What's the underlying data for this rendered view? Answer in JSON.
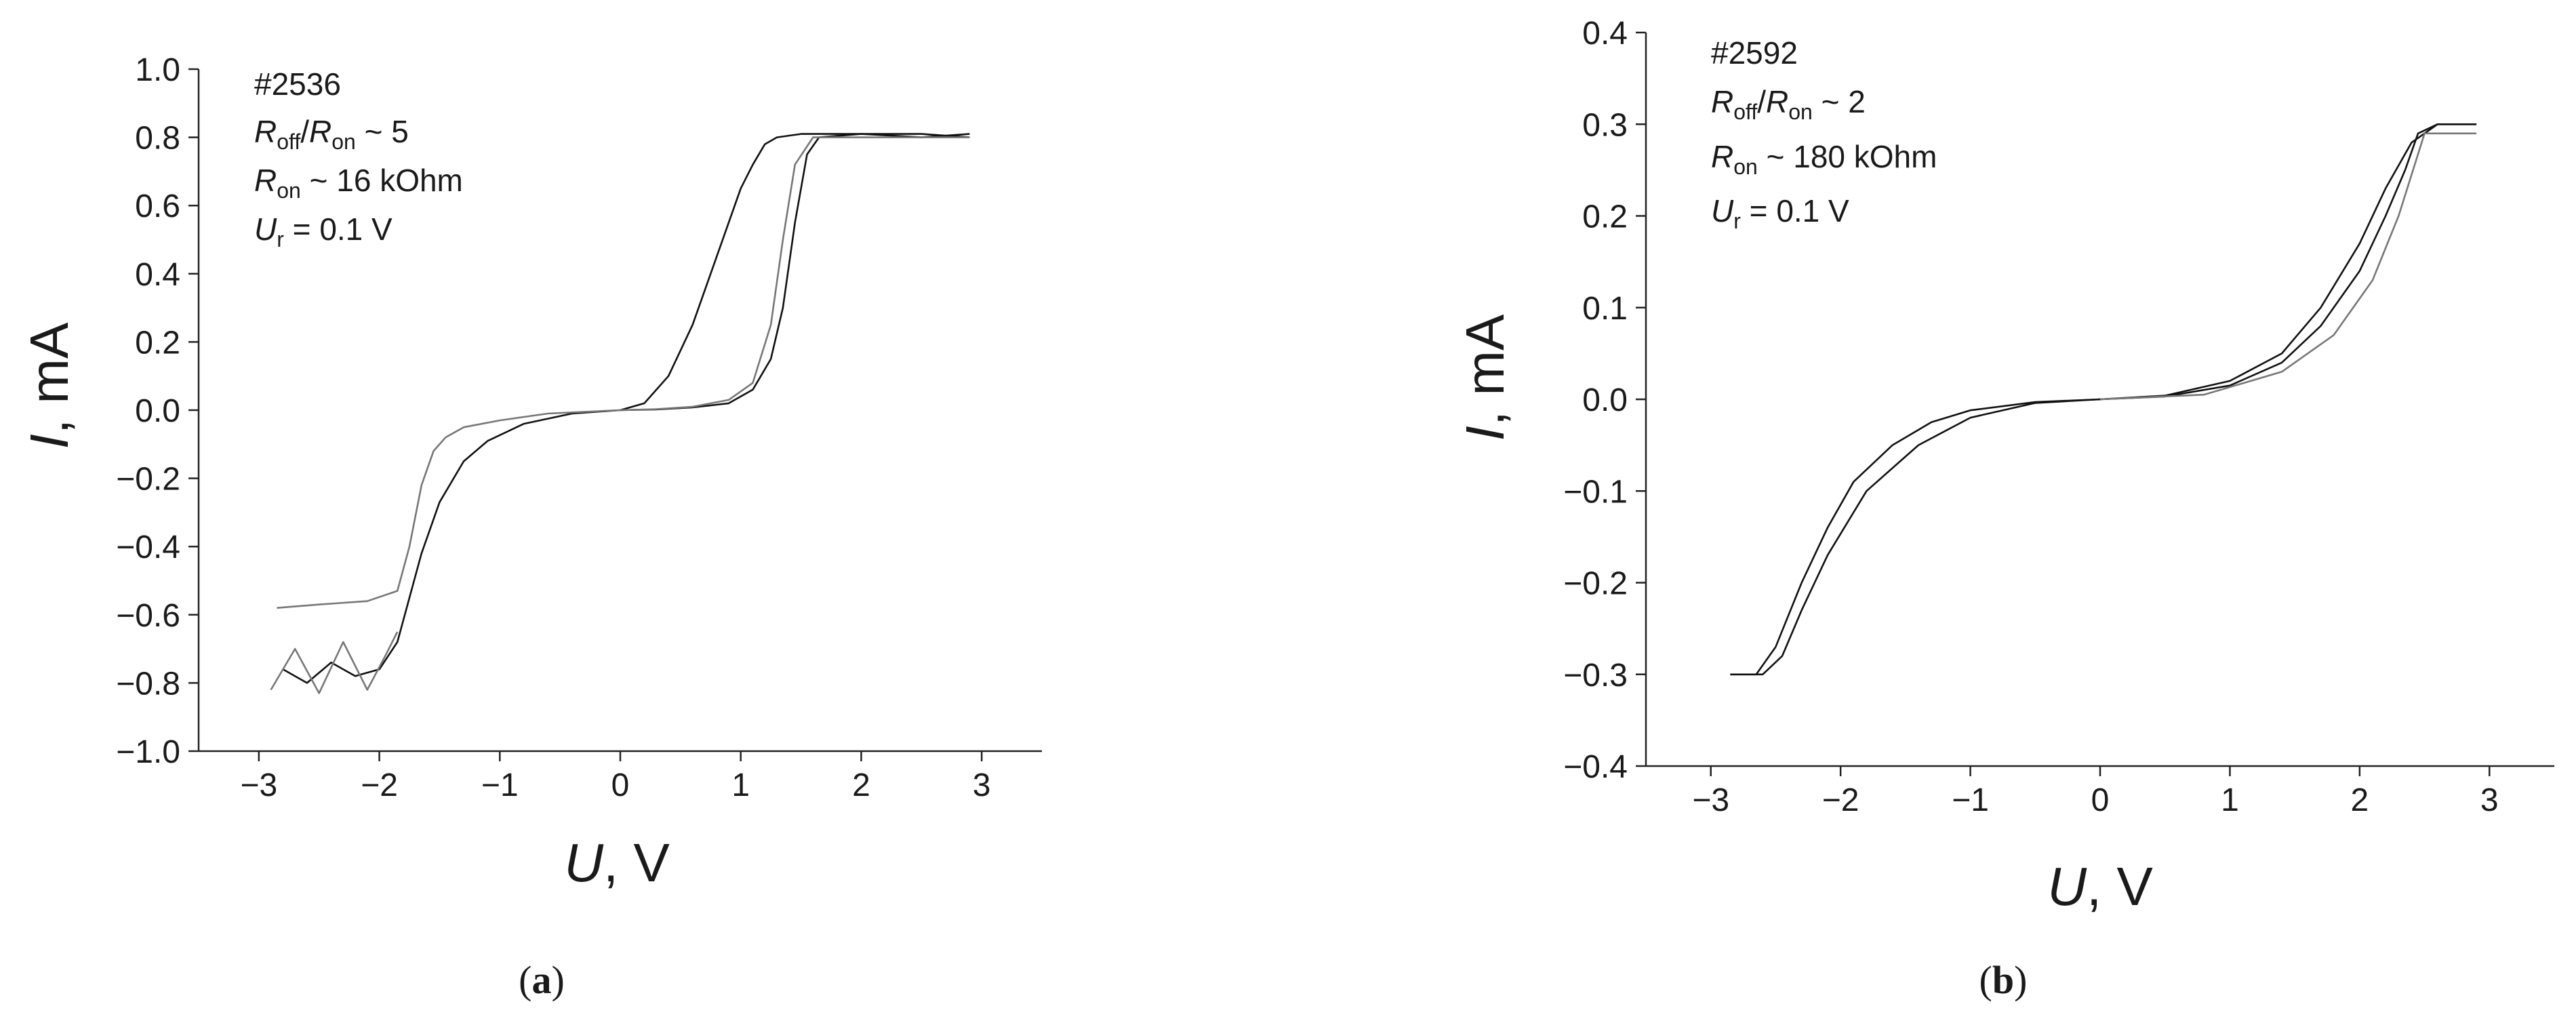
{
  "chart_data": [
    {
      "type": "line",
      "panel_label": [
        "(",
        "a",
        ")"
      ],
      "annotation": [
        [
          "#2536"
        ],
        [
          "R",
          "off",
          "/",
          "R",
          "on",
          " ~ 5"
        ],
        [
          "R",
          "on",
          " ~ 16 kOhm"
        ],
        [
          "U",
          "r",
          " = 0.1 V"
        ]
      ],
      "x_label": [
        "U",
        ", V"
      ],
      "y_label": [
        "I",
        ", mA"
      ],
      "xlim": [
        -3.5,
        3.5
      ],
      "xticks": [
        {
          "value": -3,
          "label": "−3"
        },
        {
          "value": -2,
          "label": "−2"
        },
        {
          "value": -1,
          "label": "−1"
        },
        0,
        1,
        2,
        3
      ],
      "ylim": [
        -1,
        1
      ],
      "yticks": [
        {
          "value": -1,
          "label": "−1.0"
        },
        {
          "value": -0.8,
          "label": "−0.8"
        },
        {
          "value": -0.6,
          "label": "−0.6"
        },
        {
          "value": -0.4,
          "label": "−0.4"
        },
        {
          "value": -0.2,
          "label": "−0.2"
        },
        {
          "value": 0,
          "label": "0.0"
        },
        0.2,
        0.4,
        0.6,
        0.8,
        {
          "value": 1,
          "label": "1.0"
        }
      ],
      "series": [
        {
          "color": "#111111",
          "x": [
            0,
            0.3,
            0.6,
            0.9,
            1.1,
            1.25,
            1.35,
            1.45,
            1.55,
            1.65,
            2.0,
            2.5,
            2.9
          ],
          "values": [
            0,
            0.002,
            0.008,
            0.02,
            0.06,
            0.15,
            0.3,
            0.55,
            0.75,
            0.8,
            0.81,
            0.81,
            0.8
          ]
        },
        {
          "color": "#111111",
          "x": [
            2.9,
            2.5,
            2.0,
            1.5,
            1.3,
            1.2,
            1.1,
            1.0,
            0.8,
            0.6,
            0.4,
            0.2,
            0
          ],
          "values": [
            0.81,
            0.8,
            0.81,
            0.81,
            0.8,
            0.78,
            0.72,
            0.65,
            0.45,
            0.25,
            0.1,
            0.02,
            0
          ]
        },
        {
          "color": "#777777",
          "x": [
            2.9,
            1.6,
            1.45,
            1.35,
            1.25,
            1.1,
            0.9,
            0.6,
            0.3,
            0
          ],
          "values": [
            0.8,
            0.8,
            0.72,
            0.5,
            0.25,
            0.08,
            0.03,
            0.01,
            0.003,
            0
          ]
        },
        {
          "color": "#111111",
          "x": [
            0,
            -0.4,
            -0.8,
            -1.1,
            -1.3,
            -1.5,
            -1.65,
            -1.75,
            -1.85,
            -2.0,
            -2.2,
            -2.4,
            -2.6,
            -2.8
          ],
          "values": [
            0,
            -0.01,
            -0.04,
            -0.09,
            -0.15,
            -0.27,
            -0.42,
            -0.55,
            -0.68,
            -0.76,
            -0.78,
            -0.74,
            -0.8,
            -0.76
          ]
        },
        {
          "color": "#777777",
          "x": [
            -2.85,
            -2.5,
            -2.1,
            -1.85,
            -1.75,
            -1.65,
            -1.55,
            -1.45,
            -1.3,
            -1.0,
            -0.6,
            0
          ],
          "values": [
            -0.58,
            -0.57,
            -0.56,
            -0.53,
            -0.4,
            -0.22,
            -0.12,
            -0.08,
            -0.05,
            -0.03,
            -0.01,
            0
          ]
        },
        {
          "color": "#777777",
          "x": [
            -2.9,
            -2.7,
            -2.5,
            -2.3,
            -2.1,
            -1.95,
            -1.85
          ],
          "values": [
            -0.82,
            -0.7,
            -0.83,
            -0.68,
            -0.82,
            -0.72,
            -0.65
          ]
        }
      ]
    },
    {
      "type": "line",
      "panel_label": [
        "(",
        "b",
        ")"
      ],
      "annotation": [
        [
          "#2592"
        ],
        [
          "R",
          "off",
          "/",
          "R",
          "on",
          " ~ 2"
        ],
        [
          "R",
          "on",
          " ~ 180 kOhm"
        ],
        [
          "U",
          "r",
          " = 0.1 V"
        ]
      ],
      "x_label": [
        "U",
        ", V"
      ],
      "y_label": [
        "I",
        ", mA"
      ],
      "xlim": [
        -3.5,
        3.5
      ],
      "xticks": [
        {
          "value": -3,
          "label": "−3"
        },
        {
          "value": -2,
          "label": "−2"
        },
        {
          "value": -1,
          "label": "−1"
        },
        0,
        1,
        2,
        3
      ],
      "ylim": [
        -0.4,
        0.4
      ],
      "yticks": [
        {
          "value": -0.4,
          "label": "−0.4"
        },
        {
          "value": -0.3,
          "label": "−0.3"
        },
        {
          "value": -0.2,
          "label": "−0.2"
        },
        {
          "value": -0.1,
          "label": "−0.1"
        },
        {
          "value": 0,
          "label": "0.0"
        },
        0.1,
        0.2,
        0.3,
        0.4
      ],
      "series": [
        {
          "color": "#111111",
          "x": [
            0,
            0.5,
            1.0,
            1.4,
            1.7,
            2.0,
            2.2,
            2.35,
            2.45,
            2.6,
            2.9
          ],
          "values": [
            0,
            0.003,
            0.015,
            0.04,
            0.08,
            0.14,
            0.2,
            0.25,
            0.29,
            0.3,
            0.3
          ]
        },
        {
          "color": "#111111",
          "x": [
            2.9,
            2.6,
            2.4,
            2.2,
            2.0,
            1.7,
            1.4,
            1.0,
            0.5,
            0
          ],
          "values": [
            0.3,
            0.3,
            0.28,
            0.23,
            0.17,
            0.1,
            0.05,
            0.02,
            0.004,
            0
          ]
        },
        {
          "color": "#777777",
          "x": [
            0,
            0.8,
            1.4,
            1.8,
            2.1,
            2.3,
            2.5,
            2.9
          ],
          "values": [
            0,
            0.005,
            0.03,
            0.07,
            0.13,
            0.2,
            0.29,
            0.29
          ]
        },
        {
          "color": "#111111",
          "x": [
            0,
            -0.5,
            -1.0,
            -1.4,
            -1.8,
            -2.1,
            -2.3,
            -2.45,
            -2.6,
            -2.85
          ],
          "values": [
            0,
            -0.004,
            -0.02,
            -0.05,
            -0.1,
            -0.17,
            -0.23,
            -0.28,
            -0.3,
            -0.3
          ]
        },
        {
          "color": "#111111",
          "x": [
            -2.85,
            -2.65,
            -2.5,
            -2.3,
            -2.1,
            -1.9,
            -1.6,
            -1.3,
            -1.0,
            -0.5,
            0
          ],
          "values": [
            -0.3,
            -0.3,
            -0.27,
            -0.2,
            -0.14,
            -0.09,
            -0.05,
            -0.025,
            -0.012,
            -0.003,
            0
          ]
        }
      ]
    }
  ]
}
